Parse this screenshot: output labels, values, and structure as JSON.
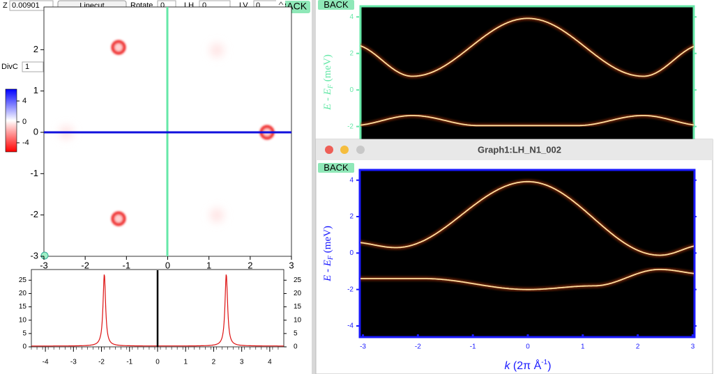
{
  "left_window": {
    "z_label": "Z",
    "z_value": "0.00901",
    "linecut_button": "Linecut",
    "rotate_label": "Rotate",
    "rotate_value": "0",
    "lh_label": "LH",
    "lh_value": "0",
    "lv_label": "LV",
    "lv_value": "0",
    "back_button": "BACK",
    "divc_label": "DivC",
    "divc_value": "1",
    "colorbar_ticks": [
      4,
      0,
      -4
    ],
    "map": {
      "xlim": [
        -3,
        3
      ],
      "ylim": [
        -3,
        3
      ],
      "xticks": [
        -3,
        -2,
        -1,
        0,
        1,
        2,
        3
      ],
      "yticks": [
        -3,
        -2,
        -1,
        0,
        1,
        2
      ]
    },
    "linecut": {
      "xlim": [
        -4.5,
        4.5
      ],
      "ylim": [
        0,
        29
      ],
      "xticks": [
        -4,
        -3,
        -2,
        -1,
        0,
        1,
        2,
        3,
        4
      ],
      "yticks": [
        0,
        5,
        10,
        15,
        20,
        25
      ]
    }
  },
  "graph0": {
    "back_button": "BACK",
    "ylabel": [
      "E - E",
      "F",
      " (meV)"
    ],
    "xlim": [
      -3.07,
      3.07
    ],
    "ylim": [
      -2.7,
      4.62
    ],
    "yticks": [
      4,
      2,
      0,
      -2
    ]
  },
  "graph1": {
    "title": "Graph1:LH_N1_002",
    "back_button": "BACK",
    "ylabel": [
      "E - E",
      "F",
      " (meV)"
    ],
    "xlabel": [
      "k",
      " (2π Å",
      "-1",
      ")"
    ],
    "xlim": [
      -3.07,
      3.07
    ],
    "ylim": [
      -4.65,
      4.6
    ],
    "xticks": [
      -3,
      -2,
      -1,
      0,
      1,
      2,
      3
    ],
    "yticks": [
      4,
      2,
      0,
      -2,
      -4
    ]
  }
}
